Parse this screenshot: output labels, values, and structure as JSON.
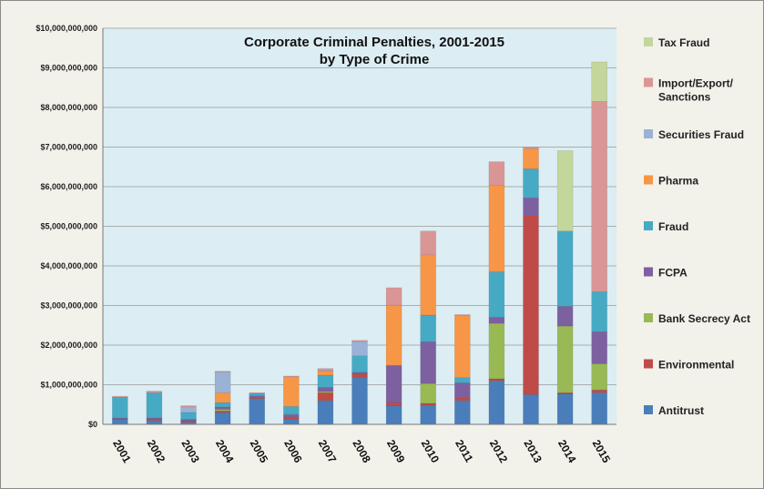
{
  "chart_data": {
    "type": "bar",
    "stacked": true,
    "title_line1": "Corporate Criminal Penalties, 2001-2015",
    "title_line2": "by Type of Crime",
    "xlabel": "",
    "ylabel": "",
    "ylim": [
      0,
      10000000000
    ],
    "yticks": [
      0,
      1000000000,
      2000000000,
      3000000000,
      4000000000,
      5000000000,
      6000000000,
      7000000000,
      8000000000,
      9000000000,
      10000000000
    ],
    "ytick_labels": [
      "$0",
      "$1,000,000,000",
      "$2,000,000,000",
      "$3,000,000,000",
      "$4,000,000,000",
      "$5,000,000,000",
      "$6,000,000,000",
      "$7,000,000,000",
      "$8,000,000,000",
      "$9,000,000,000",
      "$10,000,000,000"
    ],
    "grid": true,
    "legend_position": "right",
    "categories": [
      "2001",
      "2002",
      "2003",
      "2004",
      "2005",
      "2006",
      "2007",
      "2008",
      "2009",
      "2010",
      "2011",
      "2012",
      "2013",
      "2014",
      "2015"
    ],
    "series": [
      {
        "name": "Antitrust",
        "color": "#4a7ebb",
        "values": [
          120000000,
          100000000,
          50000000,
          300000000,
          650000000,
          130000000,
          600000000,
          1180000000,
          470000000,
          480000000,
          600000000,
          1100000000,
          750000000,
          770000000,
          800000000
        ]
      },
      {
        "name": "Environmental",
        "color": "#be4b48",
        "values": [
          20000000,
          30000000,
          30000000,
          40000000,
          20000000,
          60000000,
          200000000,
          100000000,
          80000000,
          50000000,
          70000000,
          50000000,
          4520000000,
          30000000,
          70000000
        ]
      },
      {
        "name": "Bank Secrecy Act",
        "color": "#98b954",
        "values": [
          0,
          0,
          0,
          40000000,
          0,
          0,
          30000000,
          0,
          0,
          500000000,
          0,
          1400000000,
          0,
          1680000000,
          660000000
        ]
      },
      {
        "name": "FCPA",
        "color": "#7d60a0",
        "values": [
          20000000,
          30000000,
          50000000,
          60000000,
          50000000,
          60000000,
          100000000,
          30000000,
          930000000,
          1050000000,
          380000000,
          150000000,
          450000000,
          500000000,
          810000000
        ]
      },
      {
        "name": "Fraud",
        "color": "#46aac4",
        "values": [
          520000000,
          640000000,
          170000000,
          110000000,
          60000000,
          200000000,
          310000000,
          420000000,
          10000000,
          680000000,
          130000000,
          1150000000,
          730000000,
          1900000000,
          1010000000
        ]
      },
      {
        "name": "Pharma",
        "color": "#f79646",
        "values": [
          0,
          0,
          0,
          250000000,
          0,
          750000000,
          100000000,
          0,
          1520000000,
          1520000000,
          1570000000,
          2180000000,
          510000000,
          0,
          0
        ]
      },
      {
        "name": "Securities Fraud",
        "color": "#9bb1d6",
        "values": [
          0,
          0,
          140000000,
          520000000,
          0,
          0,
          20000000,
          360000000,
          0,
          0,
          0,
          0,
          0,
          0,
          0
        ]
      },
      {
        "name": "Import/Export/\nSanctions",
        "color": "#d99694",
        "values": [
          30000000,
          40000000,
          30000000,
          20000000,
          20000000,
          20000000,
          50000000,
          30000000,
          440000000,
          600000000,
          20000000,
          600000000,
          40000000,
          0,
          4800000000
        ]
      },
      {
        "name": "Tax Fraud",
        "color": "#c3d69b",
        "values": [
          0,
          0,
          0,
          0,
          0,
          0,
          0,
          0,
          0,
          0,
          0,
          0,
          0,
          2030000000,
          1000000000
        ]
      }
    ]
  }
}
